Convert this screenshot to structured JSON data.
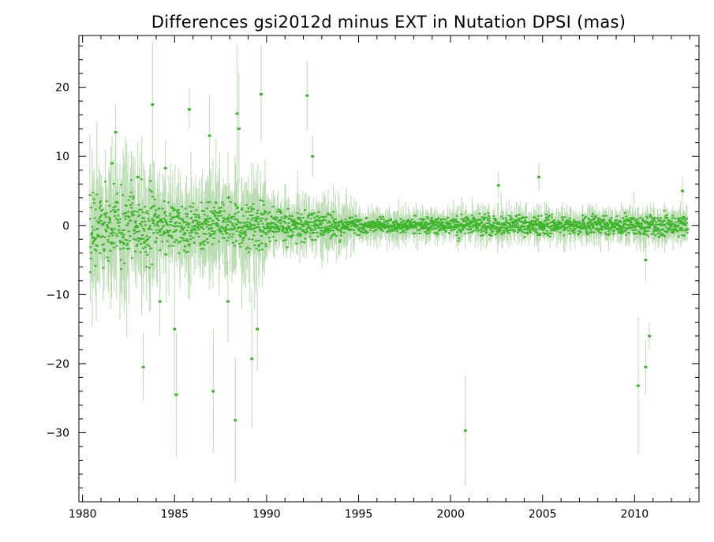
{
  "chart_data": {
    "type": "scatter",
    "title": "Differences gsi2012d minus EXT in Nutation DPSI (mas)",
    "xlabel": "",
    "ylabel": "",
    "xlim": [
      1979.8,
      2013.5
    ],
    "ylim": [
      -40,
      27.5
    ],
    "x_ticks": [
      1980,
      1985,
      1990,
      1995,
      2000,
      2005,
      2010
    ],
    "y_ticks": [
      20,
      10,
      0,
      -10,
      -20,
      -30
    ],
    "y_tick_labels": [
      "20",
      "10",
      "0",
      "−10",
      "−20",
      "−30"
    ],
    "grid": false,
    "colors": {
      "points": "#3cb52a",
      "error_bars": "#b9dcb0",
      "axes": "#000000"
    },
    "series": [
      {
        "values_note": "",
        "outliers": [
          {
            "x": 1983.8,
            "y": 17.5,
            "err": 9
          },
          {
            "x": 1985.8,
            "y": 16.8,
            "err": 3
          },
          {
            "x": 1988.4,
            "y": 16.2,
            "err": 10
          },
          {
            "x": 1989.7,
            "y": 19.0,
            "err": 7
          },
          {
            "x": 1992.2,
            "y": 18.8,
            "err": 5
          },
          {
            "x": 1981.8,
            "y": 13.5,
            "err": 4
          },
          {
            "x": 1986.9,
            "y": 13.0,
            "err": 6
          },
          {
            "x": 1988.5,
            "y": 14.0,
            "err": 8
          },
          {
            "x": 1992.5,
            "y": 10.0,
            "err": 3
          },
          {
            "x": 1981.6,
            "y": 9.0,
            "err": 4
          },
          {
            "x": 1984.5,
            "y": 8.3,
            "err": 4
          },
          {
            "x": 1983.0,
            "y": 7.0,
            "err": 5
          },
          {
            "x": 1983.3,
            "y": -20.5,
            "err": 5
          },
          {
            "x": 1985.1,
            "y": -24.5,
            "err": 9
          },
          {
            "x": 1985.0,
            "y": -15.0,
            "err": 10
          },
          {
            "x": 1987.1,
            "y": -24.0,
            "err": 9
          },
          {
            "x": 1988.3,
            "y": -28.2,
            "err": 9
          },
          {
            "x": 1989.2,
            "y": -19.3,
            "err": 10
          },
          {
            "x": 1989.5,
            "y": -15.0,
            "err": 6
          },
          {
            "x": 1987.9,
            "y": -11.0,
            "err": 6
          },
          {
            "x": 1984.2,
            "y": -11.0,
            "err": 5
          },
          {
            "x": 2000.8,
            "y": -29.7,
            "err": 8
          },
          {
            "x": 2010.2,
            "y": -23.2,
            "err": 10
          },
          {
            "x": 2010.6,
            "y": -20.5,
            "err": 4
          },
          {
            "x": 2010.8,
            "y": -16.0,
            "err": 2
          },
          {
            "x": 2004.8,
            "y": 7.0,
            "err": 2
          },
          {
            "x": 2002.6,
            "y": 5.8,
            "err": 2
          },
          {
            "x": 2012.6,
            "y": 5.0,
            "err": 2
          },
          {
            "x": 2010.6,
            "y": -5.0,
            "err": 3
          }
        ]
      }
    ]
  }
}
